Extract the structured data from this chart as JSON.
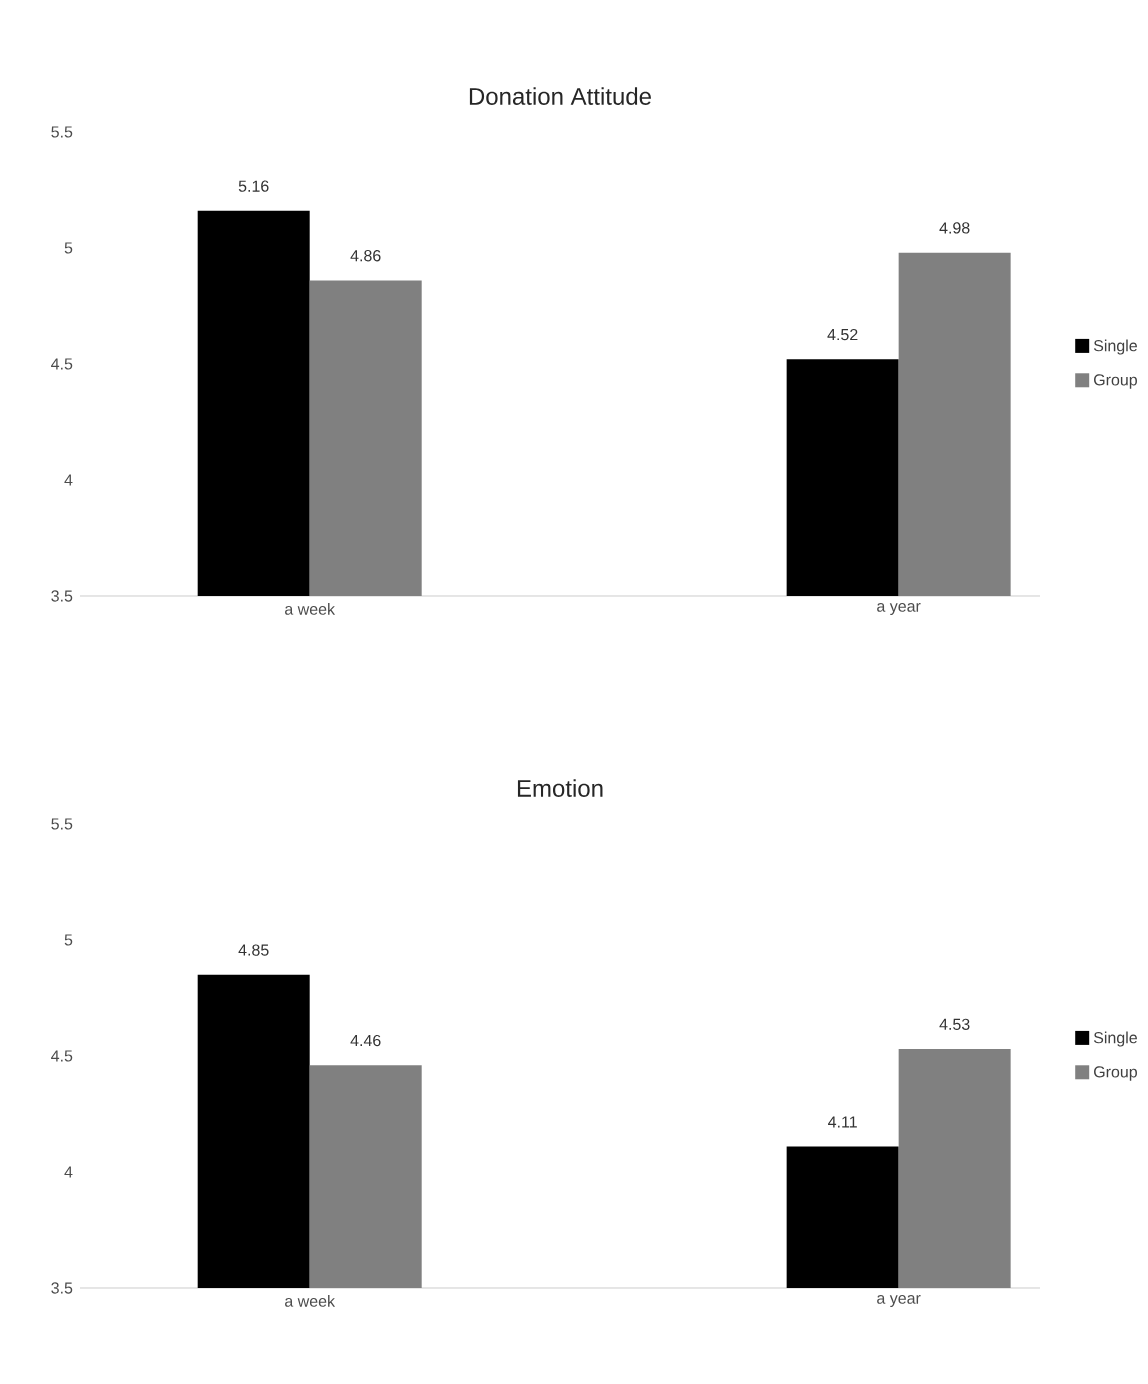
{
  "chart_data": [
    {
      "type": "bar",
      "title": "Donation Attitude",
      "categories": [
        "a week",
        "a year"
      ],
      "series": [
        {
          "name": "Single",
          "color": "#000000",
          "values": [
            5.16,
            4.52
          ]
        },
        {
          "name": "Group",
          "color": "#808080",
          "values": [
            4.86,
            4.98
          ]
        }
      ],
      "ylim": [
        3.5,
        5.5
      ],
      "yticks": [
        3.5,
        4,
        4.5,
        5,
        5.5
      ],
      "legend": "right",
      "data_labels": true
    },
    {
      "type": "bar",
      "title": "Emotion",
      "categories": [
        "a week",
        "a year"
      ],
      "series": [
        {
          "name": "Single",
          "color": "#000000",
          "values": [
            4.85,
            4.11
          ]
        },
        {
          "name": "Group",
          "color": "#808080",
          "values": [
            4.46,
            4.53
          ]
        }
      ],
      "ylim": [
        3.5,
        5.5
      ],
      "yticks": [
        3.5,
        4,
        4.5,
        5,
        5.5
      ],
      "legend": "right",
      "data_labels": true
    }
  ]
}
